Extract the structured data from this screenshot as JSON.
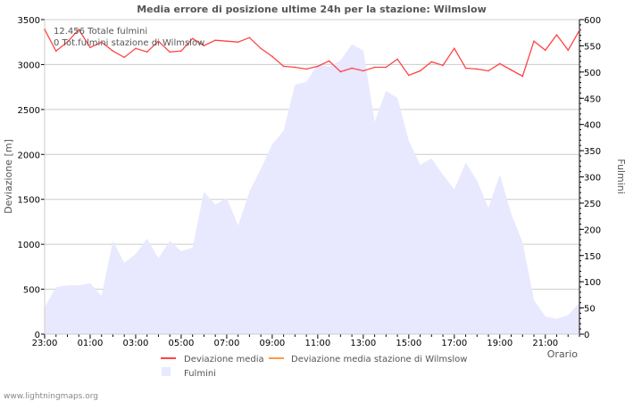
{
  "chart_data": {
    "type": "line",
    "title": "Media errore di posizione ultime 24h per la stazione: Wilmslow",
    "xlabel": "Orario",
    "ylabel": "Deviazione  [m]",
    "ylabel_right": "Fulmini",
    "ylim": [
      0,
      3500
    ],
    "ylim_right": [
      0,
      600
    ],
    "yticks": [
      "0",
      "500",
      "1000",
      "1500",
      "2000",
      "2500",
      "3000",
      "3500"
    ],
    "yticks_right": [
      "0",
      "50",
      "100",
      "150",
      "200",
      "250",
      "300",
      "350",
      "400",
      "450",
      "500",
      "550",
      "600"
    ],
    "xtick_labels": [
      "23:00",
      "01:00",
      "03:00",
      "05:00",
      "07:00",
      "09:00",
      "11:00",
      "13:00",
      "15:00",
      "17:00",
      "19:00",
      "21:00"
    ],
    "grid": true,
    "annotations": [
      "12.456 Totale fulmini",
      "0 Tot.fulmini stazione di Wilmslow"
    ],
    "legend": [
      "Deviazione media",
      "Deviazione media stazione di Wilmslow",
      "Fulmini"
    ],
    "legend_position": "bottom",
    "series": [
      {
        "name": "Deviazione media",
        "type": "line",
        "axis": "left",
        "color": "#ff4444",
        "values": [
          3390,
          3150,
          3250,
          3390,
          3190,
          3250,
          3150,
          3080,
          3180,
          3140,
          3260,
          3140,
          3150,
          3290,
          3210,
          3270,
          3260,
          3250,
          3300,
          3180,
          3090,
          2980,
          2970,
          2950,
          2980,
          3040,
          2920,
          2960,
          2930,
          2970,
          2970,
          3060,
          2880,
          2930,
          3030,
          2990,
          3180,
          2960,
          2950,
          2930,
          3010,
          2940,
          2870,
          3260,
          3160,
          3330,
          3160,
          3380
        ]
      },
      {
        "name": "Deviazione media stazione di Wilmslow",
        "type": "line",
        "axis": "left",
        "color": "#ff9944",
        "values": []
      },
      {
        "name": "Fulmini",
        "type": "area",
        "axis": "right",
        "color": "#e8e8ff",
        "values": [
          51,
          90,
          93,
          93,
          97,
          73,
          178,
          136,
          153,
          182,
          145,
          178,
          158,
          165,
          272,
          247,
          260,
          207,
          272,
          315,
          362,
          388,
          476,
          481,
          515,
          510,
          522,
          553,
          541,
          405,
          464,
          451,
          369,
          323,
          335,
          304,
          276,
          327,
          293,
          241,
          304,
          230,
          175,
          65,
          34,
          29,
          36,
          60
        ]
      }
    ]
  },
  "footer": "www.lightningmaps.org"
}
